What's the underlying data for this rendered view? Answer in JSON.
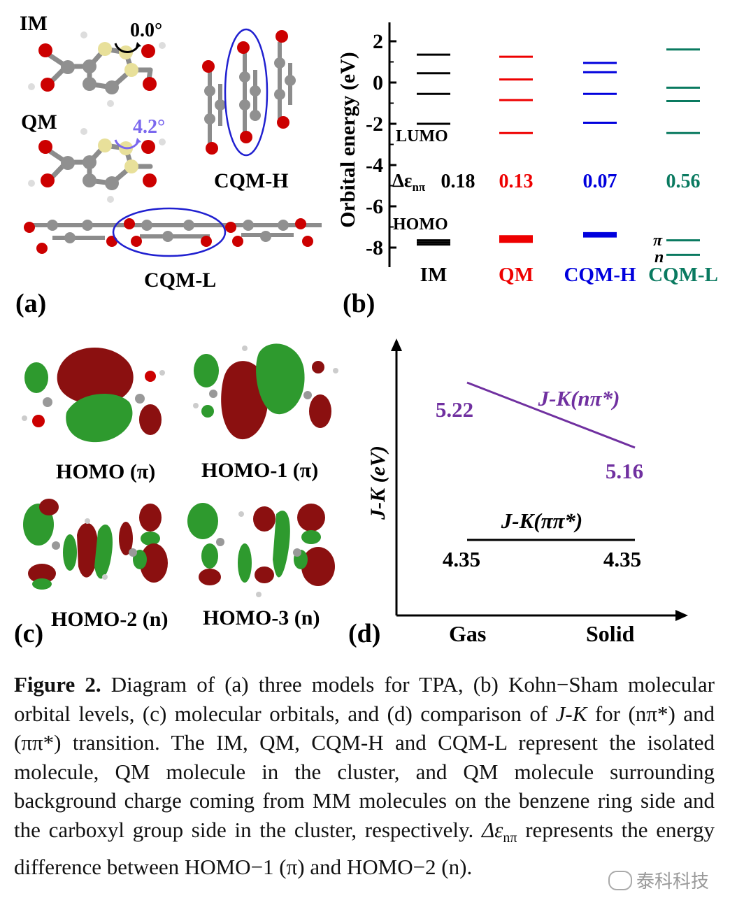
{
  "panel_a": {
    "label": "(a)",
    "im_label": "IM",
    "im_angle": "0.0°",
    "qm_label": "QM",
    "qm_angle": "4.2°",
    "cqmh_label": "CQM-H",
    "cqml_label": "CQM-L"
  },
  "panel_b": {
    "label": "(b)",
    "lumo_label": "LUMO",
    "homo_label": "HOMO",
    "delta_prefix": "Δε",
    "delta_sub": "nπ",
    "pi_label": "π",
    "n_label": "n",
    "chart_data": {
      "type": "line",
      "ylabel": "Orbital energy (eV)",
      "yticks": [
        "2",
        "0",
        "-2",
        "-4",
        "-6",
        "-8"
      ],
      "ylim": [
        -8.9,
        2.4
      ],
      "categories": [
        "IM",
        "QM",
        "CQM-H",
        "CQM-L"
      ],
      "colors": [
        "#000000",
        "#ee0000",
        "#0000dd",
        "#0a7a60"
      ],
      "unoccupied_levels": [
        [
          1.35,
          0.45,
          -0.55,
          -2.0
        ],
        [
          1.25,
          0.15,
          -0.85,
          -2.45
        ],
        [
          0.95,
          0.5,
          -0.55,
          -1.95
        ],
        [
          1.6,
          -0.25,
          -0.9,
          -2.45
        ]
      ],
      "occupied_levels": [
        [
          -7.65,
          -7.75,
          -7.85
        ],
        [
          -7.45,
          -7.52,
          -7.59,
          -7.66,
          -7.72
        ],
        [
          -7.3,
          -7.38,
          -7.46
        ],
        [
          -7.65,
          -8.35
        ]
      ],
      "delta_values": [
        "0.18",
        "0.13",
        "0.07",
        "0.56"
      ]
    }
  },
  "panel_c": {
    "label": "(c)",
    "orbitals": [
      "HOMO (π)",
      "HOMO-1 (π)",
      "HOMO-2 (n)",
      "HOMO-3 (n)"
    ]
  },
  "panel_d": {
    "label": "(d)",
    "chart_data": {
      "type": "line",
      "ylabel": "J-K (eV)",
      "categories": [
        "Gas",
        "Solid"
      ],
      "series": [
        {
          "name": "J-K(nπ*)",
          "values": [
            5.22,
            5.16
          ],
          "labels": [
            "5.22",
            "5.16"
          ],
          "color": "#7030a0"
        },
        {
          "name": "J-K(ππ*)",
          "values": [
            4.35,
            4.35
          ],
          "labels": [
            "4.35",
            "4.35"
          ],
          "color": "#000000"
        }
      ]
    }
  },
  "caption": {
    "fig_label": "Figure 2.",
    "part1": " Diagram of (a) three models for TPA, (b) Kohn−Sham molecular orbital levels, (c) molecular orbitals, and (d) comparison of ",
    "jk": "J-K",
    "part2": " for (nπ*) and (ππ*) transition. The IM, QM, CQM-H and CQM-L represent the isolated molecule, QM molecule in the cluster, and QM molecule surrounding background charge coming from MM molecules on the benzene ring side and the carboxyl group side in the cluster, respectively. ",
    "delta": "Δε",
    "delta_sub": "nπ",
    "part3": " represents the energy difference between HOMO−1 (π) and HOMO−2 (n)."
  },
  "watermark": "泰科科技"
}
